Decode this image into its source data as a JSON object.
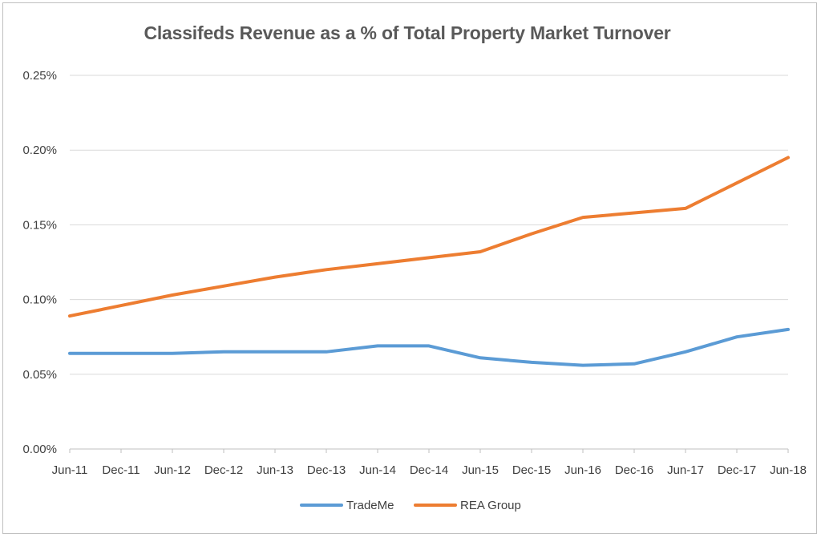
{
  "chart_data": {
    "type": "line",
    "title": "Classifeds Revenue as a % of Total Property Market Turnover",
    "categories": [
      "Jun-11",
      "Dec-11",
      "Jun-12",
      "Dec-12",
      "Jun-13",
      "Dec-13",
      "Jun-14",
      "Dec-14",
      "Jun-15",
      "Dec-15",
      "Jun-16",
      "Dec-16",
      "Jun-17",
      "Dec-17",
      "Jun-18"
    ],
    "y_ticks": [
      "0.00%",
      "0.05%",
      "0.10%",
      "0.15%",
      "0.20%",
      "0.25%"
    ],
    "ylim": [
      0,
      0.25
    ],
    "grid": true,
    "legend_position": "bottom",
    "series": [
      {
        "name": "TradeMe",
        "color": "#5b9bd5",
        "values": [
          0.064,
          0.064,
          0.064,
          0.065,
          0.065,
          0.065,
          0.069,
          0.069,
          0.061,
          0.058,
          0.056,
          0.057,
          0.065,
          0.075,
          0.08
        ]
      },
      {
        "name": "REA Group",
        "color": "#ed7d31",
        "values": [
          0.089,
          0.096,
          0.103,
          0.109,
          0.115,
          0.12,
          0.124,
          0.128,
          0.132,
          0.144,
          0.155,
          0.158,
          0.161,
          0.178,
          0.195
        ]
      }
    ]
  }
}
